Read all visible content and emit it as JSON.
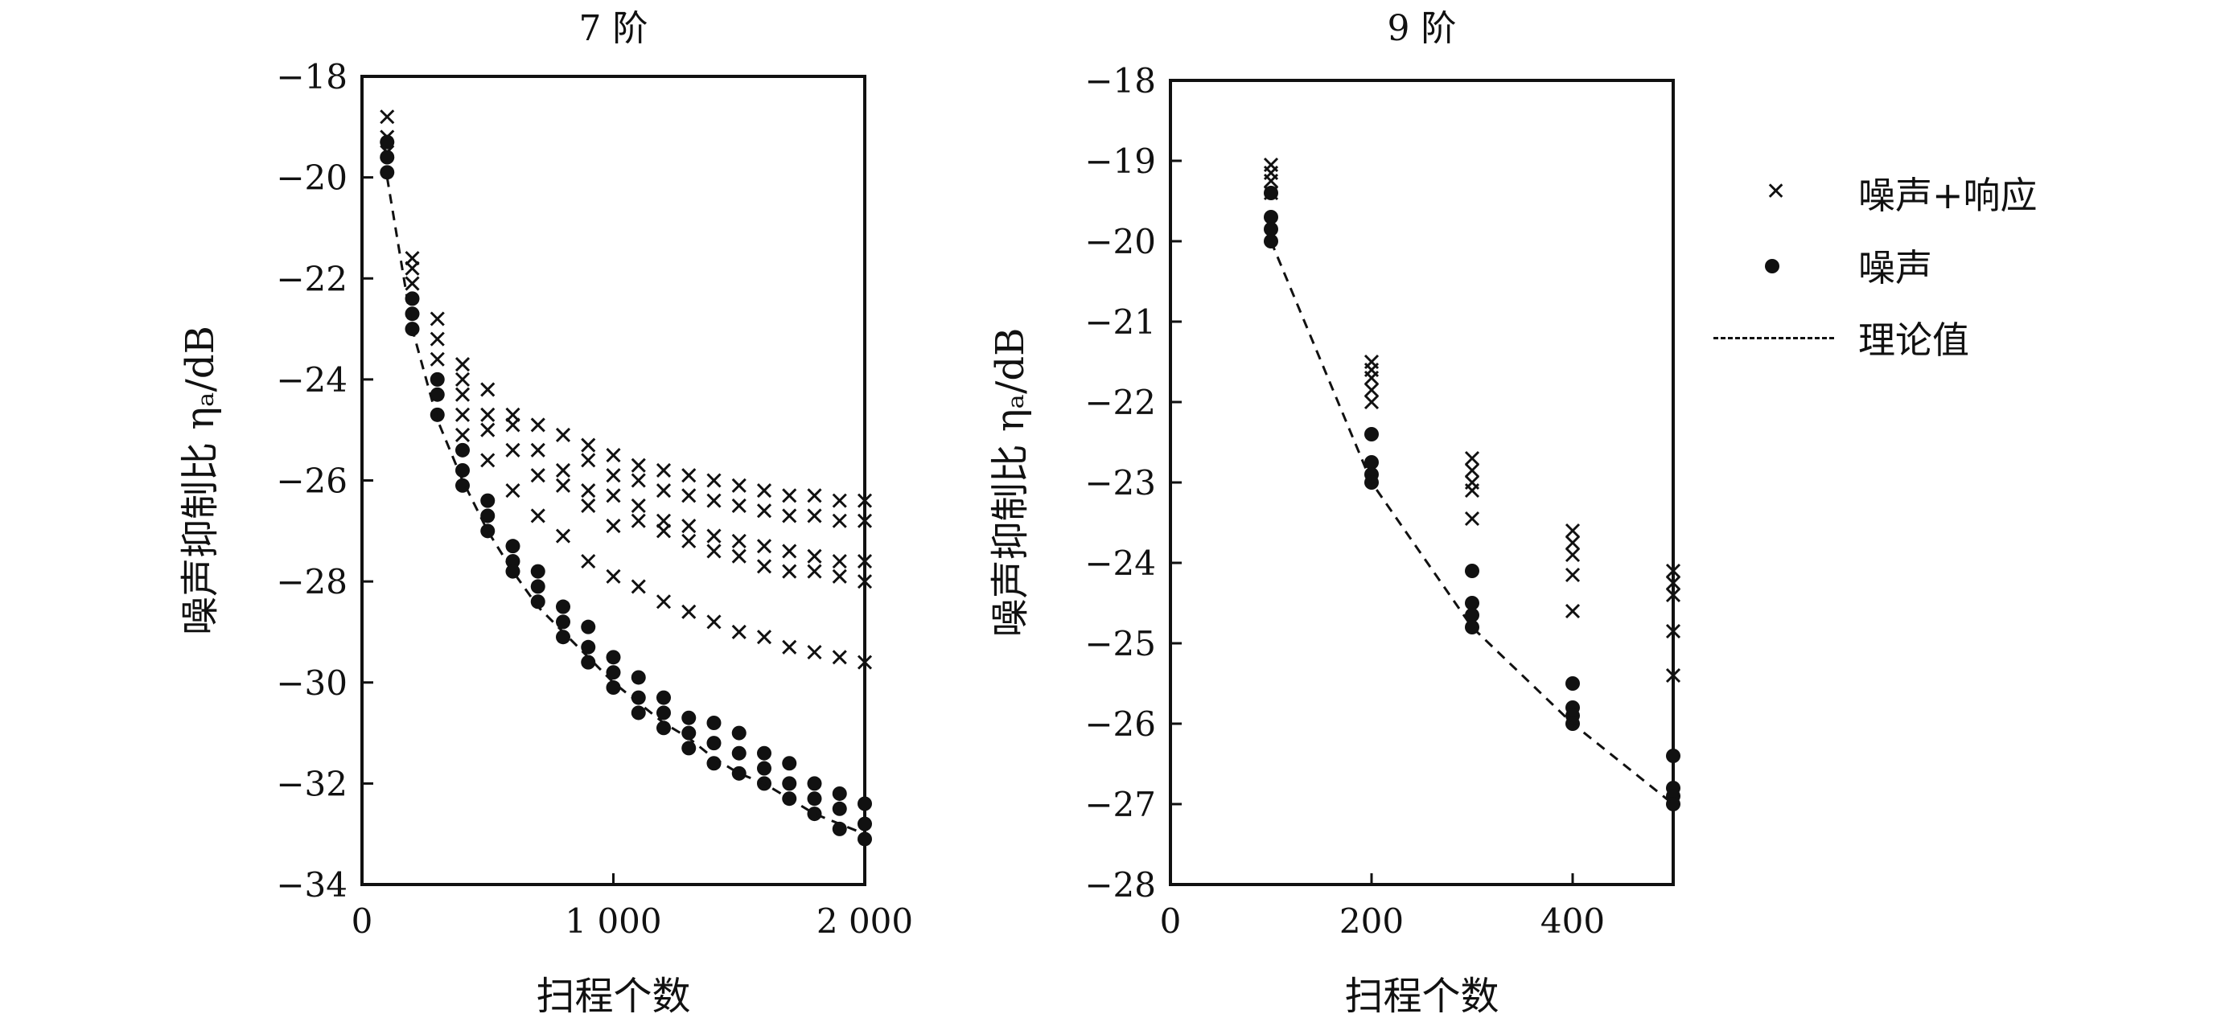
{
  "colors": {
    "ink": "#111111",
    "background": "#ffffff"
  },
  "legend": {
    "items": [
      {
        "marker": "cross",
        "label": "噪声+响应"
      },
      {
        "marker": "dot",
        "label": "噪声"
      },
      {
        "marker": "dashed-line",
        "label": "理论值"
      }
    ]
  },
  "chart_data": [
    {
      "type": "scatter",
      "title": "7 阶",
      "xlabel": "扫程个数",
      "ylabel": "噪声抑制比 ηₐ/dB",
      "xlim": [
        0,
        2000
      ],
      "ylim": [
        -34,
        -18
      ],
      "xticks": [
        0,
        1000,
        2000
      ],
      "xtick_labels": [
        "0",
        "1 000",
        "2 000"
      ],
      "yticks": [
        -18,
        -20,
        -22,
        -24,
        -26,
        -28,
        -30,
        -32,
        -34
      ],
      "ytick_labels": [
        "−18",
        "−20",
        "−22",
        "−24",
        "−26",
        "−28",
        "−30",
        "−32",
        "−34"
      ],
      "grid": false,
      "series": [
        {
          "name": "噪声+响应",
          "marker": "cross",
          "x": [
            100,
            200,
            300,
            400,
            500,
            600,
            700,
            800,
            900,
            1000,
            1100,
            1200,
            1300,
            1400,
            1500,
            1600,
            1700,
            1800,
            1900,
            2000
          ],
          "ys": [
            [
              -18.8,
              -19.2,
              -19.5
            ],
            [
              -21.6,
              -21.8,
              -22.1
            ],
            [
              -22.8,
              -23.2,
              -23.6
            ],
            [
              -23.7,
              -24.0,
              -24.3,
              -24.7,
              -25.1
            ],
            [
              -24.2,
              -24.7,
              -25.0,
              -25.6
            ],
            [
              -24.7,
              -24.9,
              -25.4,
              -26.2
            ],
            [
              -24.9,
              -25.4,
              -25.9,
              -26.7
            ],
            [
              -25.1,
              -25.8,
              -26.1,
              -27.1
            ],
            [
              -25.3,
              -25.6,
              -26.2,
              -26.5,
              -27.6
            ],
            [
              -25.5,
              -25.9,
              -26.3,
              -26.9,
              -27.9
            ],
            [
              -25.7,
              -26.0,
              -26.5,
              -26.8,
              -28.1
            ],
            [
              -25.8,
              -26.2,
              -26.8,
              -27.0,
              -28.4
            ],
            [
              -25.9,
              -26.3,
              -26.9,
              -27.2,
              -28.6
            ],
            [
              -26.0,
              -26.4,
              -27.1,
              -27.4,
              -28.8
            ],
            [
              -26.1,
              -26.5,
              -27.2,
              -27.5,
              -29.0
            ],
            [
              -26.2,
              -26.6,
              -27.3,
              -27.7,
              -29.1
            ],
            [
              -26.3,
              -26.7,
              -27.4,
              -27.8,
              -29.3
            ],
            [
              -26.3,
              -26.7,
              -27.5,
              -27.8,
              -29.4
            ],
            [
              -26.4,
              -26.8,
              -27.6,
              -27.9,
              -29.5
            ],
            [
              -26.4,
              -26.8,
              -27.6,
              -28.0,
              -29.6
            ]
          ]
        },
        {
          "name": "噪声",
          "marker": "dot",
          "x": [
            100,
            200,
            300,
            400,
            500,
            600,
            700,
            800,
            900,
            1000,
            1100,
            1200,
            1300,
            1400,
            1500,
            1600,
            1700,
            1800,
            1900,
            2000
          ],
          "ys": [
            [
              -19.3,
              -19.6,
              -19.9
            ],
            [
              -22.4,
              -22.7,
              -23.0
            ],
            [
              -24.0,
              -24.3,
              -24.7
            ],
            [
              -25.4,
              -25.8,
              -26.1
            ],
            [
              -26.4,
              -26.7,
              -27.0
            ],
            [
              -27.3,
              -27.6,
              -27.8
            ],
            [
              -27.8,
              -28.1,
              -28.4
            ],
            [
              -28.5,
              -28.8,
              -29.1
            ],
            [
              -28.9,
              -29.3,
              -29.6
            ],
            [
              -29.5,
              -29.8,
              -30.1
            ],
            [
              -29.9,
              -30.3,
              -30.6
            ],
            [
              -30.3,
              -30.6,
              -30.9
            ],
            [
              -30.7,
              -31.0,
              -31.3
            ],
            [
              -30.8,
              -31.2,
              -31.6
            ],
            [
              -31.0,
              -31.4,
              -31.8
            ],
            [
              -31.4,
              -31.7,
              -32.0
            ],
            [
              -31.6,
              -32.0,
              -32.3
            ],
            [
              -32.0,
              -32.3,
              -32.6
            ],
            [
              -32.2,
              -32.5,
              -32.9
            ],
            [
              -32.4,
              -32.8,
              -33.1
            ]
          ]
        },
        {
          "name": "理论值",
          "marker": "dashed-line",
          "x": [
            100,
            200,
            300,
            400,
            500,
            600,
            700,
            800,
            900,
            1000,
            1100,
            1200,
            1300,
            1400,
            1500,
            1600,
            1700,
            1800,
            1900,
            2000
          ],
          "y": [
            -20.0,
            -23.0,
            -24.8,
            -26.0,
            -27.0,
            -27.8,
            -28.5,
            -29.0,
            -29.5,
            -30.0,
            -30.4,
            -30.8,
            -31.1,
            -31.5,
            -31.8,
            -32.0,
            -32.3,
            -32.6,
            -32.8,
            -33.0
          ]
        }
      ]
    },
    {
      "type": "scatter",
      "title": "9 阶",
      "xlabel": "扫程个数",
      "ylabel": "噪声抑制比 ηₐ/dB",
      "xlim": [
        0,
        500
      ],
      "ylim": [
        -28,
        -18
      ],
      "xticks": [
        0,
        200,
        400
      ],
      "xtick_labels": [
        "0",
        "200",
        "400"
      ],
      "yticks": [
        -18,
        -19,
        -20,
        -21,
        -22,
        -23,
        -24,
        -25,
        -26,
        -27,
        -28
      ],
      "ytick_labels": [
        "−18",
        "−19",
        "−20",
        "−21",
        "−22",
        "−23",
        "−24",
        "−25",
        "−26",
        "−27",
        "−28"
      ],
      "grid": false,
      "series": [
        {
          "name": "噪声+响应",
          "marker": "cross",
          "x": [
            100,
            200,
            300,
            400,
            500
          ],
          "ys": [
            [
              -19.05,
              -19.15,
              -19.25,
              -19.4
            ],
            [
              -21.5,
              -21.6,
              -21.7,
              -21.85,
              -22.0
            ],
            [
              -22.7,
              -22.85,
              -23.0,
              -23.1,
              -23.45
            ],
            [
              -23.6,
              -23.75,
              -23.9,
              -24.15,
              -24.6
            ],
            [
              -24.1,
              -24.25,
              -24.4,
              -24.85,
              -25.4
            ]
          ]
        },
        {
          "name": "噪声",
          "marker": "dot",
          "x": [
            100,
            200,
            300,
            400,
            500
          ],
          "ys": [
            [
              -19.4,
              -19.7,
              -19.85,
              -20.0
            ],
            [
              -22.4,
              -22.75,
              -22.9,
              -23.0
            ],
            [
              -24.1,
              -24.5,
              -24.65,
              -24.8
            ],
            [
              -25.5,
              -25.8,
              -25.9,
              -26.0
            ],
            [
              -26.4,
              -26.8,
              -26.9,
              -27.0
            ]
          ]
        },
        {
          "name": "理论值",
          "marker": "dashed-line",
          "x": [
            100,
            200,
            300,
            400,
            500
          ],
          "y": [
            -20.0,
            -23.0,
            -24.8,
            -26.0,
            -27.0
          ]
        }
      ]
    }
  ]
}
